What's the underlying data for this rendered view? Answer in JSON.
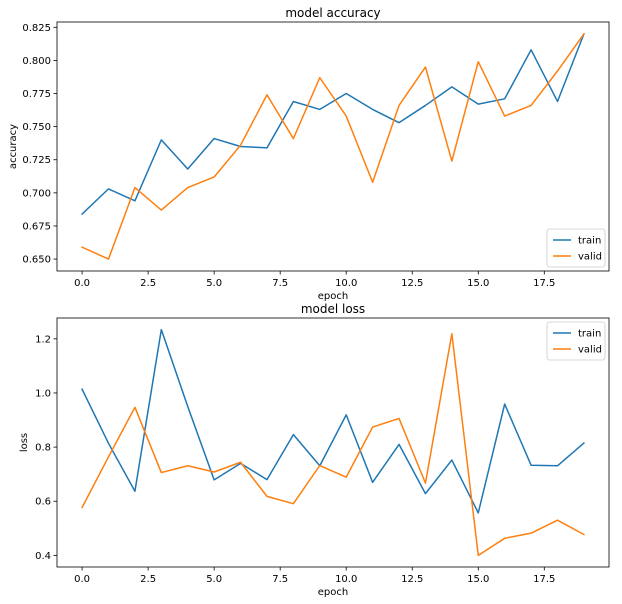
{
  "chart_data": [
    {
      "type": "line",
      "title": "model accuracy",
      "xlabel": "epoch",
      "ylabel": "accuracy",
      "xlim": [
        -0.95,
        19.95
      ],
      "ylim": [
        0.641,
        0.829
      ],
      "xticks": [
        0.0,
        2.5,
        5.0,
        7.5,
        10.0,
        12.5,
        15.0,
        17.5
      ],
      "xtick_labels": [
        "0.0",
        "2.5",
        "5.0",
        "7.5",
        "10.0",
        "12.5",
        "15.0",
        "17.5"
      ],
      "yticks": [
        0.65,
        0.675,
        0.7,
        0.725,
        0.75,
        0.775,
        0.8,
        0.825
      ],
      "ytick_labels": [
        "0.650",
        "0.675",
        "0.700",
        "0.725",
        "0.750",
        "0.775",
        "0.800",
        "0.825"
      ],
      "legend_position": "lower-right",
      "grid": false,
      "x": [
        0,
        1,
        2,
        3,
        4,
        5,
        6,
        7,
        8,
        9,
        10,
        11,
        12,
        13,
        14,
        15,
        16,
        17,
        18,
        19
      ],
      "series": [
        {
          "name": "train",
          "color": "#1f77b4",
          "values": [
            0.684,
            0.703,
            0.694,
            0.74,
            0.718,
            0.741,
            0.735,
            0.734,
            0.769,
            0.763,
            0.775,
            0.763,
            0.753,
            0.766,
            0.78,
            0.767,
            0.771,
            0.808,
            0.769,
            0.82
          ]
        },
        {
          "name": "valid",
          "color": "#ff7f0e",
          "values": [
            0.659,
            0.65,
            0.704,
            0.687,
            0.704,
            0.712,
            0.736,
            0.774,
            0.741,
            0.787,
            0.758,
            0.708,
            0.766,
            0.795,
            0.724,
            0.799,
            0.758,
            0.766,
            0.792,
            0.82
          ]
        }
      ]
    },
    {
      "type": "line",
      "title": "model loss",
      "xlabel": "epoch",
      "ylabel": "loss",
      "xlim": [
        -0.95,
        19.95
      ],
      "ylim": [
        0.357,
        1.277
      ],
      "xticks": [
        0.0,
        2.5,
        5.0,
        7.5,
        10.0,
        12.5,
        15.0,
        17.5
      ],
      "xtick_labels": [
        "0.0",
        "2.5",
        "5.0",
        "7.5",
        "10.0",
        "12.5",
        "15.0",
        "17.5"
      ],
      "yticks": [
        0.4,
        0.6,
        0.8,
        1.0,
        1.2
      ],
      "ytick_labels": [
        "0.4",
        "0.6",
        "0.8",
        "1.0",
        "1.2"
      ],
      "legend_position": "upper-right",
      "grid": false,
      "x": [
        0,
        1,
        2,
        3,
        4,
        5,
        6,
        7,
        8,
        9,
        10,
        11,
        12,
        13,
        14,
        15,
        16,
        17,
        18,
        19
      ],
      "series": [
        {
          "name": "train",
          "color": "#1f77b4",
          "values": [
            1.014,
            0.814,
            0.637,
            1.234,
            0.95,
            0.679,
            0.74,
            0.68,
            0.846,
            0.731,
            0.919,
            0.67,
            0.81,
            0.628,
            0.752,
            0.557,
            0.959,
            0.733,
            0.731,
            0.815
          ]
        },
        {
          "name": "valid",
          "color": "#ff7f0e",
          "values": [
            0.577,
            0.764,
            0.947,
            0.706,
            0.731,
            0.708,
            0.744,
            0.618,
            0.591,
            0.732,
            0.689,
            0.874,
            0.906,
            0.667,
            1.219,
            0.4,
            0.463,
            0.482,
            0.53,
            0.477
          ]
        }
      ]
    }
  ]
}
